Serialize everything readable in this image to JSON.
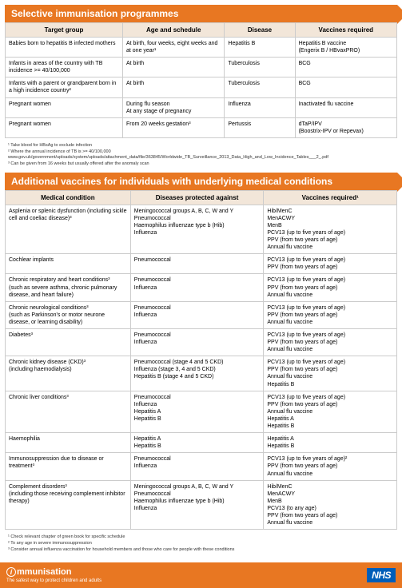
{
  "section1": {
    "title": "Selective immunisation programmes",
    "headers": [
      "Target group",
      "Age and schedule",
      "Disease",
      "Vaccines required"
    ],
    "rows": [
      [
        "Babies born to hepatitis B infected mothers",
        "At birth, four weeks, eight weeks and at one year¹",
        "Hepatitis B",
        "Hepatitis B vaccine\n(Engerix B / HBvaxPRO)"
      ],
      [
        "Infants in areas of the country with TB incidence >= 40/100,000",
        "At birth",
        "Tuberculosis",
        "BCG"
      ],
      [
        "Infants with a parent or grandparent born in a high incidence country²",
        "At birth",
        "Tuberculosis",
        "BCG"
      ],
      [
        "Pregnant women",
        "During flu season\nAt any stage of pregnancy",
        "Influenza",
        "Inactivated flu vaccine"
      ],
      [
        "Pregnant women",
        "From 20 weeks gestation³",
        "Pertussis",
        "dTaP/IPV\n(Boostrix-IPV or Repevax)"
      ]
    ],
    "footnotes": "¹ Take blood for HBsAg to exclude infection\n² Where the annual incidence of TB is >= 40/100,000\nwww.gov.uk/government/uploads/system/uploads/attachment_data/file/363845/Worldwide_TB_Surveillance_2013_Data_High_and_Low_Incidence_Tables___2_.pdf\n³ Can be given from 16 weeks but usually offered after the anomaly scan"
  },
  "section2": {
    "title": "Additional vaccines for individuals with underlying medical conditions",
    "headers": [
      "Medical condition",
      "Diseases protected against",
      "Vaccines required¹"
    ],
    "rows": [
      [
        "Asplenia or splenic dysfunction (including sickle cell and coeliac disease)³",
        "Meningococcal groups A, B, C, W and Y\nPneumococcal\nHaemophilus influenzae type b (Hib)\nInfluenza",
        "Hib/MenC\nMenACWY\nMenB\nPCV13 (up to five years of age)\nPPV (from two years of age)\nAnnual flu vaccine"
      ],
      [
        "Cochlear implants",
        "Pneumococcal",
        "PCV13 (up to five years of age)\nPPV (from two years of age)"
      ],
      [
        "Chronic respiratory and heart conditions³\n(such as severe asthma, chronic pulmonary disease, and heart failure)",
        "Pneumococcal\nInfluenza",
        "PCV13 (up to five years of age)\nPPV (from two years of age)\nAnnual flu vaccine"
      ],
      [
        "Chronic neurological conditions³\n(such as Parkinson's or motor neurone disease, or learning disability)",
        "Pneumococcal\nInfluenza",
        "PCV13 (up to five years of age)\nPPV (from two years of age)\nAnnual flu vaccine"
      ],
      [
        "Diabetes³",
        "Pneumococcal\nInfluenza",
        "PCV13 (up to five years of age)\nPPV (from two years of age)\nAnnual flu vaccine"
      ],
      [
        "Chronic kidney disease (CKD)³\n(including haemodialysis)",
        "Pneumococcal (stage 4 and 5 CKD)\nInfluenza (stage 3, 4 and 5 CKD)\nHepatitis B (stage 4 and 5 CKD)",
        "PCV13 (up to five years of age)\nPPV (from two years of age)\nAnnual flu vaccine\nHepatitis B"
      ],
      [
        "Chronic liver conditions³",
        "Pneumococcal\nInfluenza\nHepatitis A\nHepatitis B",
        "PCV13 (up to five years of age)\nPPV (from two years of age)\nAnnual flu vaccine\nHepatitis A\nHepatitis B"
      ],
      [
        "Haemophilia",
        "Hepatitis A\nHepatitis B",
        "Hepatitis A\nHepatitis B"
      ],
      [
        "Immunosuppression due to disease or treatment³",
        "Pneumococcal\nInfluenza",
        "PCV13 (up to five years of age)²\nPPV (from two years of age)\nAnnual flu vaccine"
      ],
      [
        "Complement disorders³\n(including those receiving complement inhibitor therapy)",
        "Meningococcal groups A, B, C, W and Y\nPneumococcal\nHaemophilus influenzae type b (Hib)\nInfluenza",
        "Hib/MenC\nMenACWY\nMenB\nPCV13 (to any age)\nPPV (from two years of age)\nAnnual flu vaccine"
      ]
    ],
    "footnotes": "¹ Check relevant chapter of green book for specific schedule\n² To any age in severe immunosuppression\n³ Consider annual influenza vaccination for household members and those who care for people with these conditions"
  },
  "footer": {
    "brand": "mmunisation",
    "tagline": "The safest way to protect children and adults",
    "nhs": "NHS"
  },
  "colors": {
    "orange": "#e87722",
    "header_bg": "#f2e6d9",
    "nhs_blue": "#005eb8"
  }
}
